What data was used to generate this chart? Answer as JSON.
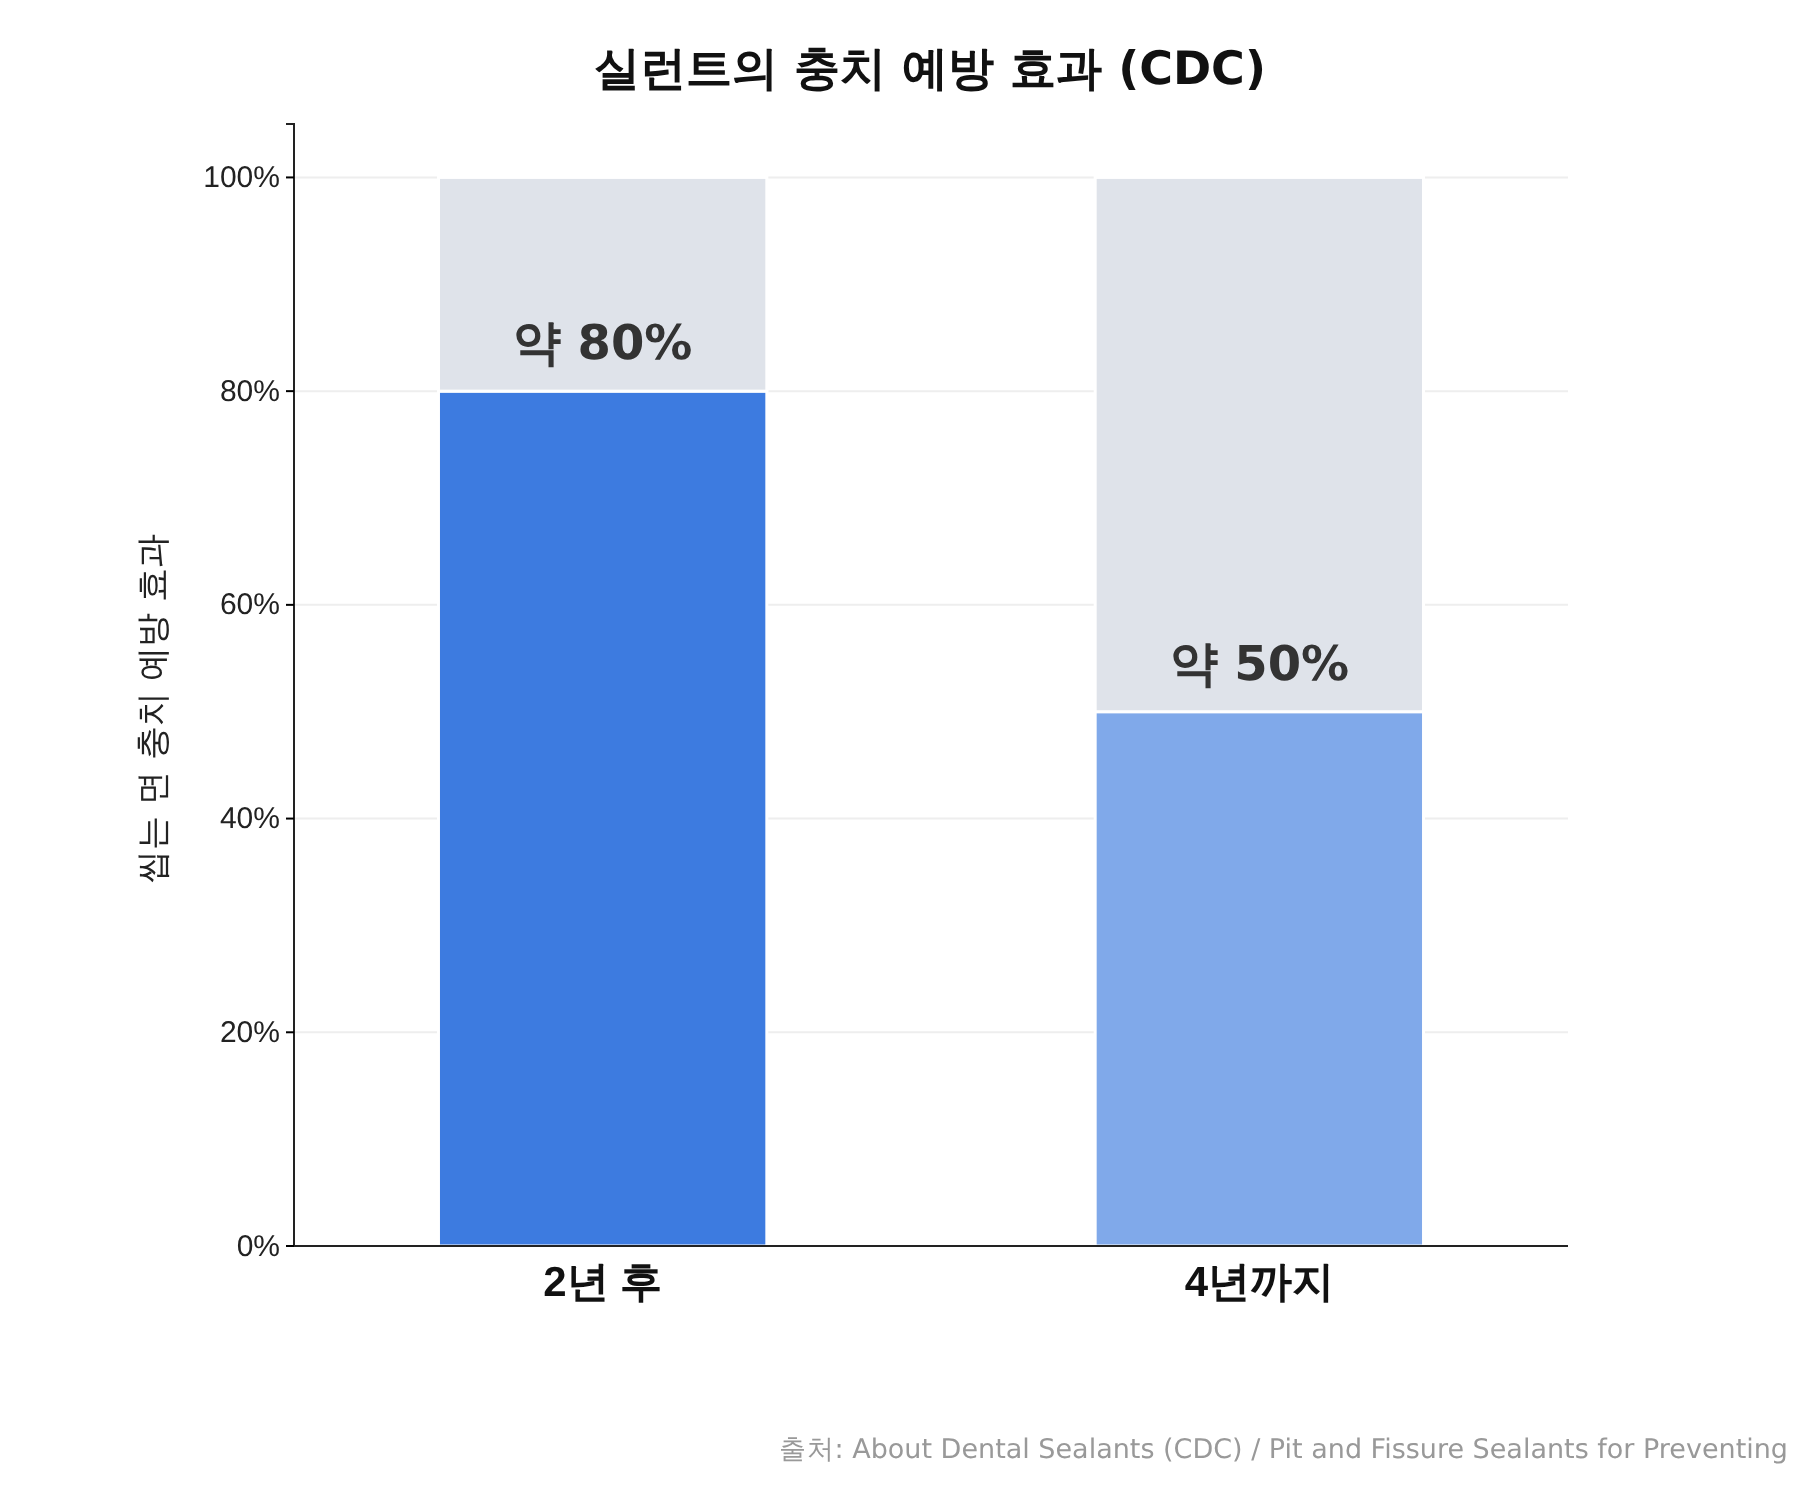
{
  "chart_data": {
    "type": "bar",
    "title": "실런트의 충치 예방 효과 (CDC)",
    "ylabel": "씹는 면 충치 예방 효과",
    "categories": [
      "2년 후",
      "4년까지"
    ],
    "series": [
      {
        "colors": [
          "#3d7be0",
          "#80a9ea"
        ],
        "values": [
          80,
          50
        ],
        "value_labels": [
          "약 80%",
          "약 50%"
        ]
      },
      {
        "color": "#dfe3ea",
        "values": [
          20,
          50
        ]
      }
    ],
    "stacked": true,
    "ylim": [
      0,
      105
    ],
    "yticks": [
      {
        "value": 0,
        "label": "0%"
      },
      {
        "value": 20,
        "label": "20%"
      },
      {
        "value": 40,
        "label": "40%"
      },
      {
        "value": 60,
        "label": "60%"
      },
      {
        "value": 80,
        "label": "80%"
      },
      {
        "value": 100,
        "label": "100%"
      }
    ],
    "grid": "y",
    "annotations": [
      "출처: About Dental Sealants (CDC)  /  Pit and Fissure Sealants for Preventing"
    ]
  }
}
